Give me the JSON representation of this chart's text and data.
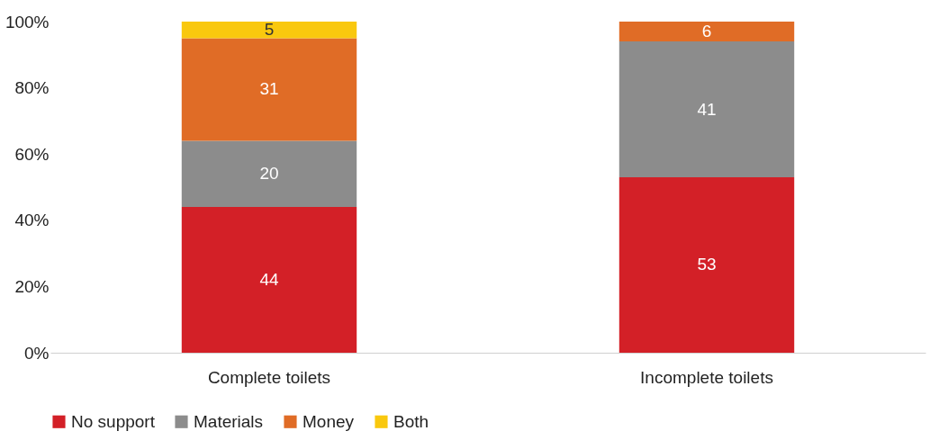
{
  "chart_data": {
    "type": "bar",
    "stacked": true,
    "categories": [
      "Complete toilets",
      "Incomplete toilets"
    ],
    "series": [
      {
        "name": "No support",
        "color": "#d32027",
        "values": [
          44,
          53
        ]
      },
      {
        "name": "Materials",
        "color": "#8c8c8c",
        "values": [
          20,
          41
        ]
      },
      {
        "name": "Money",
        "color": "#e06c26",
        "values": [
          31,
          6
        ]
      },
      {
        "name": "Both",
        "color": "#f9c80e",
        "values": [
          5,
          null
        ]
      }
    ],
    "ylim": [
      0,
      100
    ],
    "yticks": [
      {
        "value": 0,
        "label": "0%"
      },
      {
        "value": 20,
        "label": "20%"
      },
      {
        "value": 40,
        "label": "40%"
      },
      {
        "value": 60,
        "label": "60%"
      },
      {
        "value": 80,
        "label": "80%"
      },
      {
        "value": 100,
        "label": "100%"
      }
    ],
    "data_labels": true,
    "grid": false,
    "legend": "bottom"
  }
}
